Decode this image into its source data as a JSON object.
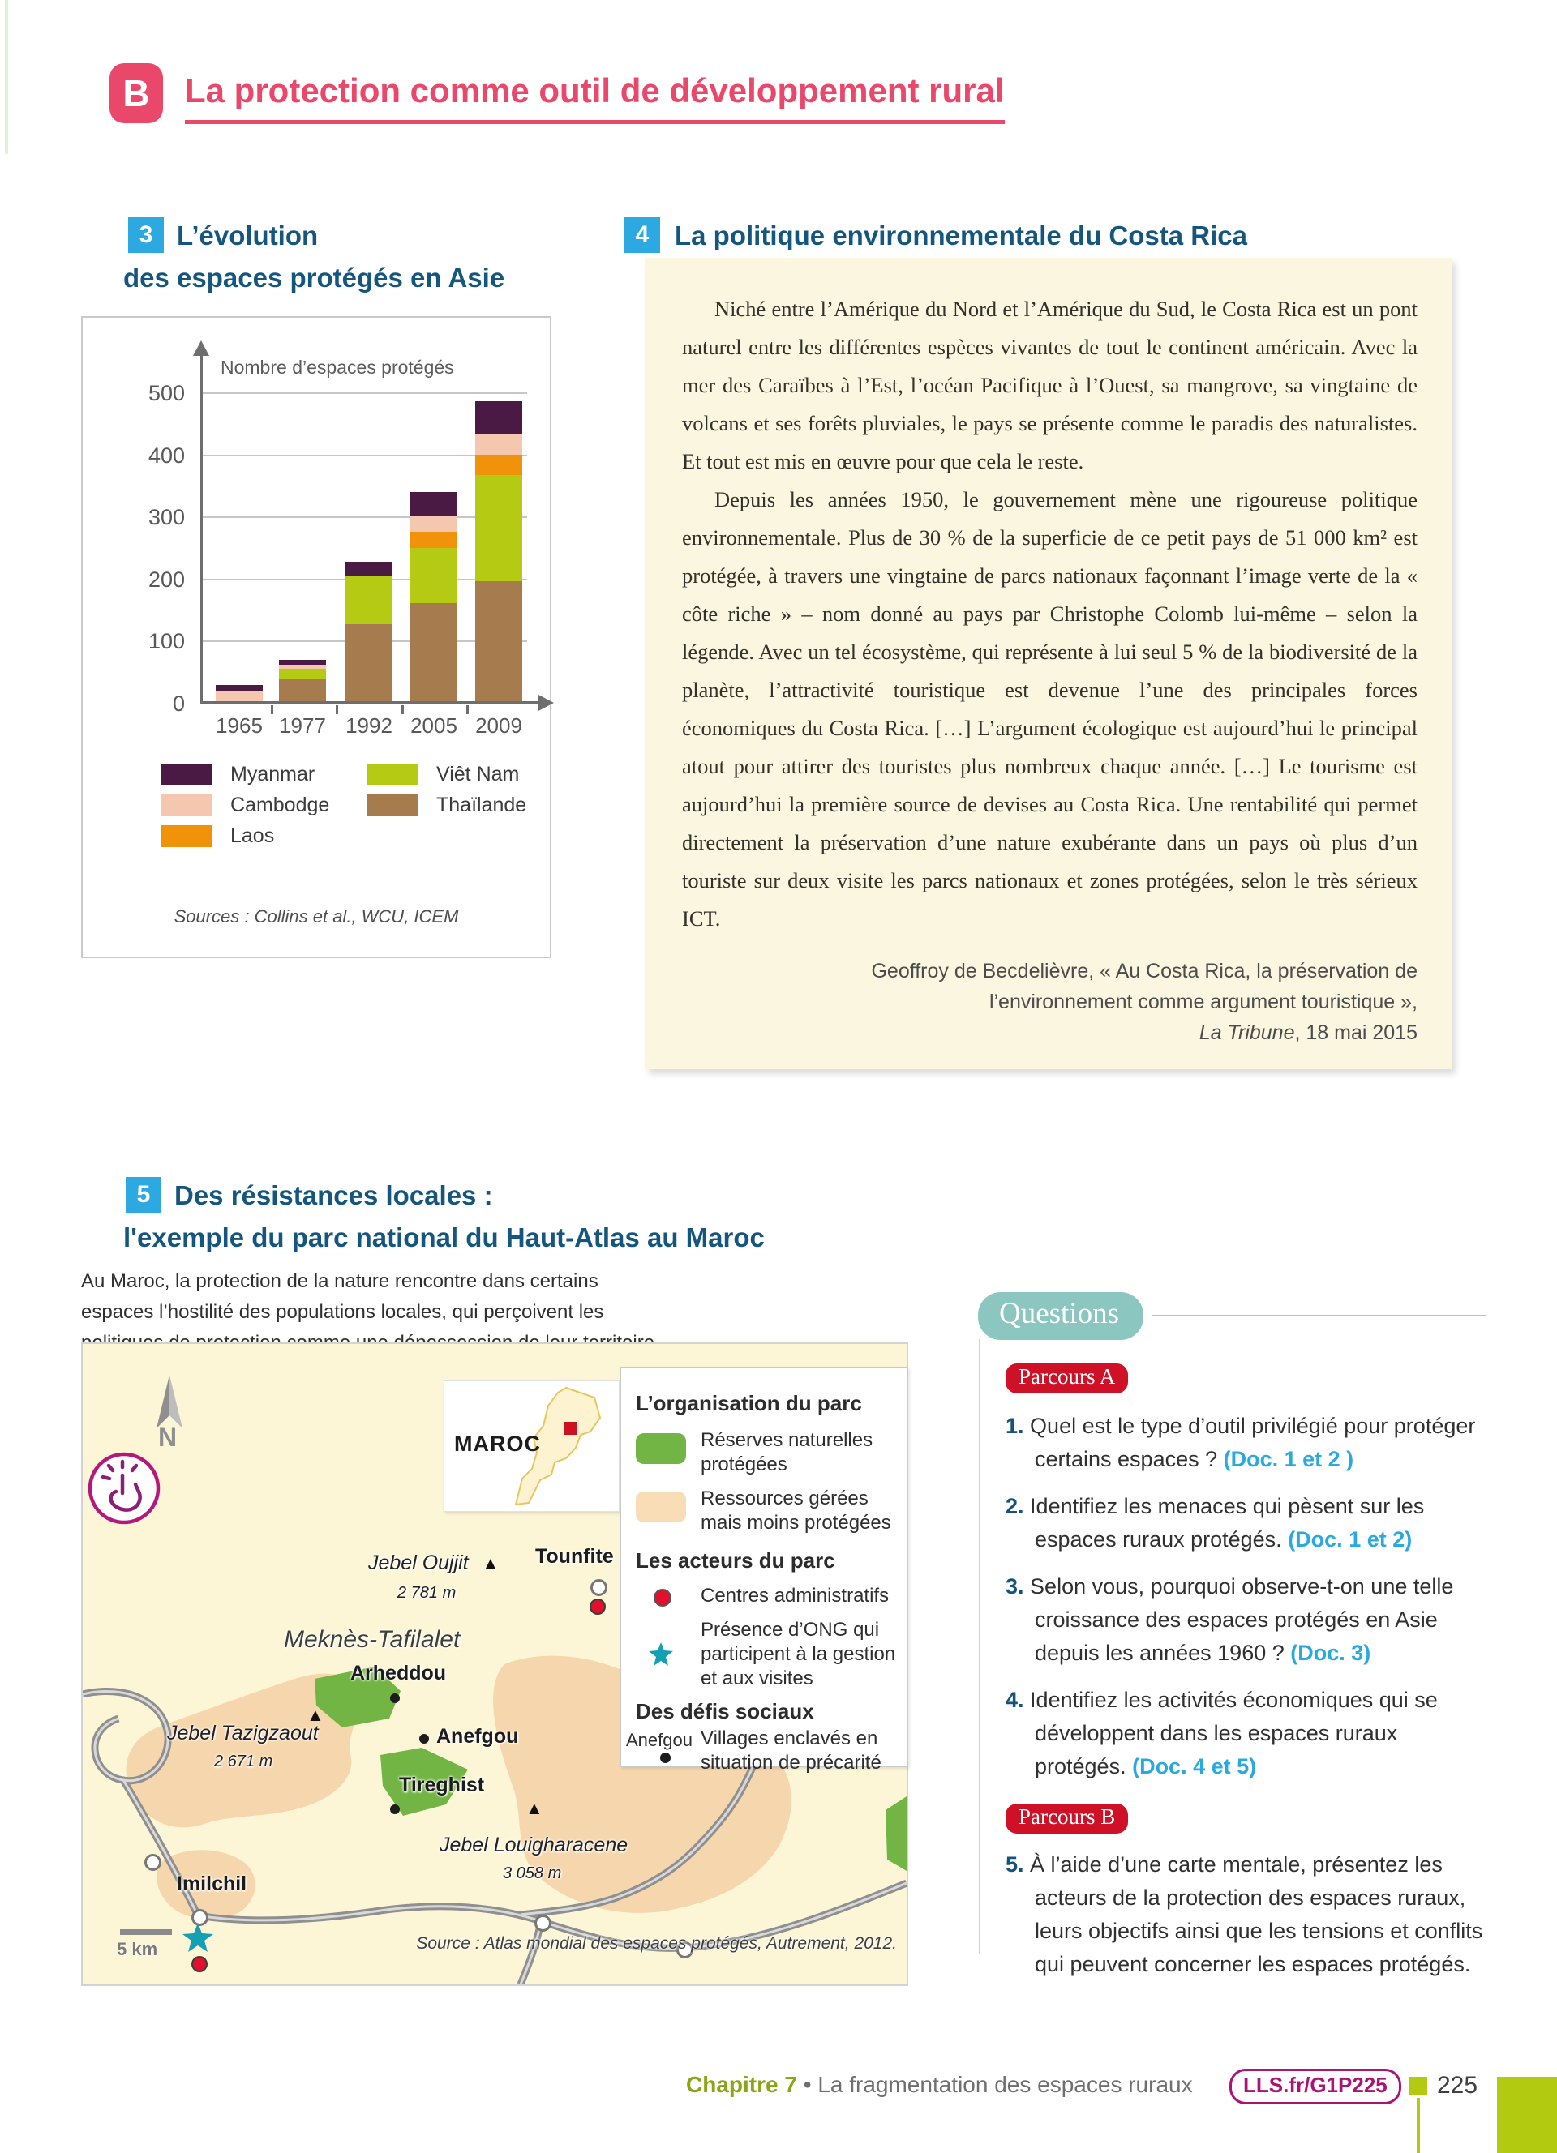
{
  "header": {
    "badge": "B",
    "title": "La protection comme outil de développement rural"
  },
  "doc3": {
    "number": "3",
    "title_line1": "L’évolution",
    "title_line2": "des espaces protégés en Asie",
    "legend": {
      "col1": [
        "Myanmar",
        "Cambodge",
        "Laos"
      ],
      "col2": [
        "Viêt Nam",
        "Thaïlande"
      ]
    },
    "source": "Sources : Collins et al., WCU, ICEM"
  },
  "chart_data": {
    "type": "bar",
    "stacked": true,
    "title": "L’évolution des espaces protégés en Asie",
    "ylabel": "Nombre d’espaces protégés",
    "xlabel": "",
    "categories": [
      "1965",
      "1977",
      "1992",
      "2005",
      "2009"
    ],
    "ylim": [
      0,
      500
    ],
    "yticks": [
      0,
      100,
      200,
      300,
      400,
      500
    ],
    "grid": true,
    "legend_position": "bottom",
    "series": [
      {
        "name": "Thaïlande",
        "color": "#a67c4e",
        "values": [
          0,
          39,
          128,
          162,
          197
        ]
      },
      {
        "name": "Viêt Nam",
        "color": "#b5ca13",
        "values": [
          0,
          17,
          77,
          89,
          171
        ]
      },
      {
        "name": "Laos",
        "color": "#f0930a",
        "values": [
          0,
          0,
          0,
          26,
          32
        ]
      },
      {
        "name": "Cambodge",
        "color": "#f5c7af",
        "values": [
          19,
          6,
          0,
          26,
          32
        ]
      },
      {
        "name": "Myanmar",
        "color": "#4a1a45",
        "values": [
          11,
          8,
          23,
          38,
          54
        ]
      }
    ],
    "totals": [
      30,
      70,
      228,
      341,
      486
    ]
  },
  "doc4": {
    "number": "4",
    "title": "La politique environnementale du Costa Rica",
    "paragraph1": "Niché entre l’Amérique du Nord et l’Amérique du Sud, le Costa Rica est un pont naturel entre les différentes espèces vivantes de tout le continent américain. Avec la mer des Caraïbes à l’Est, l’océan Pacifique à l’Ouest, sa mangrove, sa vingtaine de volcans et ses forêts pluviales, le pays se présente comme le paradis des naturalistes. Et tout est mis en œuvre pour que cela le reste.",
    "paragraph2": "Depuis les années 1950, le gouvernement mène une rigoureuse politique environnementale. Plus de 30 % de la superficie de ce petit pays de 51 000 km² est protégée, à travers une vingtaine de parcs nationaux façonnant l’image verte de la « côte riche » – nom donné au pays par Christophe Colomb lui-même – selon la légende. Avec un tel écosystème, qui représente à lui seul 5 % de la biodiversité de la planète, l’attractivité touristique est devenue l’une des principales forces économiques du Costa Rica. […] L’argument écologique est aujourd’hui le principal atout pour attirer des touristes plus nombreux chaque année. […] Le tourisme est aujourd’hui la première source de devises au Costa Rica. Une rentabilité qui permet directement la préservation d’une nature exubérante dans un pays où plus d’un touriste sur deux visite les parcs nationaux et zones protégées, selon le très sérieux ICT.",
    "attribution_line1": "Geoffroy de Becdelièvre, « Au Costa Rica, la préservation de",
    "attribution_line2": "l’environnement comme argument touristique »,",
    "attribution_journal": "La Tribune",
    "attribution_date": ", 18 mai 2015"
  },
  "doc5": {
    "number": "5",
    "title_line1": "Des résistances locales :",
    "title_line2": "l'exemple du parc national du Haut-Atlas au Maroc",
    "intro": "Au Maroc, la protection de la nature rencontre dans certains espaces l’hostilité des populations locales, qui perçoivent les politiques de protection comme une dépossession de leur territoire.",
    "map": {
      "north": "N",
      "country": "MAROC",
      "jebel_oujjit": "Jebel Oujjit",
      "jebel_oujjit_alt": "2 781 m",
      "tounfite": "Tounfite",
      "region": "Meknès-Tafilalet",
      "arheddou": "Arheddou",
      "jebel_tazigzaout": "Jebel Tazigzaout",
      "jebel_tazigzaout_alt": "2 671 m",
      "anefgou": "Anefgou",
      "tireghist": "Tireghist",
      "jebel_louigharacene": "Jebel Louigharacene",
      "jebel_louigharacene_alt": "3 058 m",
      "imilchil": "Imilchil",
      "scale": "5 km",
      "source": "Source : Atlas mondial des espaces protégés, Autrement, 2012."
    },
    "map_legend": {
      "organisation_title": "L’organisation du parc",
      "reserves": "Réserves naturelles protégées",
      "ressources": "Ressources gérées mais moins protégées",
      "acteurs_title": "Les acteurs du parc",
      "centres": "Centres administratifs",
      "ong": "Présence d’ONG qui participent à la gestion et aux visites",
      "defis_title": "Des défis sociaux",
      "village_example": "Anefgou",
      "villages": "Villages enclavés en situation de précarité"
    }
  },
  "questions": {
    "title": "Questions",
    "parcours_a": "Parcours A",
    "parcours_b": "Parcours B",
    "items": [
      {
        "num": "1.",
        "text": "Quel est le type d’outil privilégié pour protéger certains espaces ? ",
        "ref": "(Doc. 1 et 2 )"
      },
      {
        "num": "2.",
        "text": "Identifiez les menaces qui pèsent sur les espaces ruraux protégés. ",
        "ref": "(Doc. 1 et 2)"
      },
      {
        "num": "3.",
        "text": "Selon vous, pourquoi observe-t-on une telle croissance des espaces protégés en Asie depuis les années 1960 ? ",
        "ref": "(Doc. 3)"
      },
      {
        "num": "4.",
        "text": "Identifiez les activités économiques qui se développent dans les espaces ruraux protégés. ",
        "ref": "(Doc. 4 et 5)"
      },
      {
        "num": "5.",
        "text": "À l’aide d’une carte mentale, présentez les acteurs de la protection des espaces ruraux, leurs objectifs ainsi que les tensions et conflits qui peuvent concerner les espaces protégés.",
        "ref": ""
      }
    ]
  },
  "footer": {
    "chapter": "Chapitre 7",
    "separator": "•",
    "book_title": "La fragmentation des espaces ruraux",
    "link": "LLS.fr/G1P225",
    "page_number": "225"
  }
}
